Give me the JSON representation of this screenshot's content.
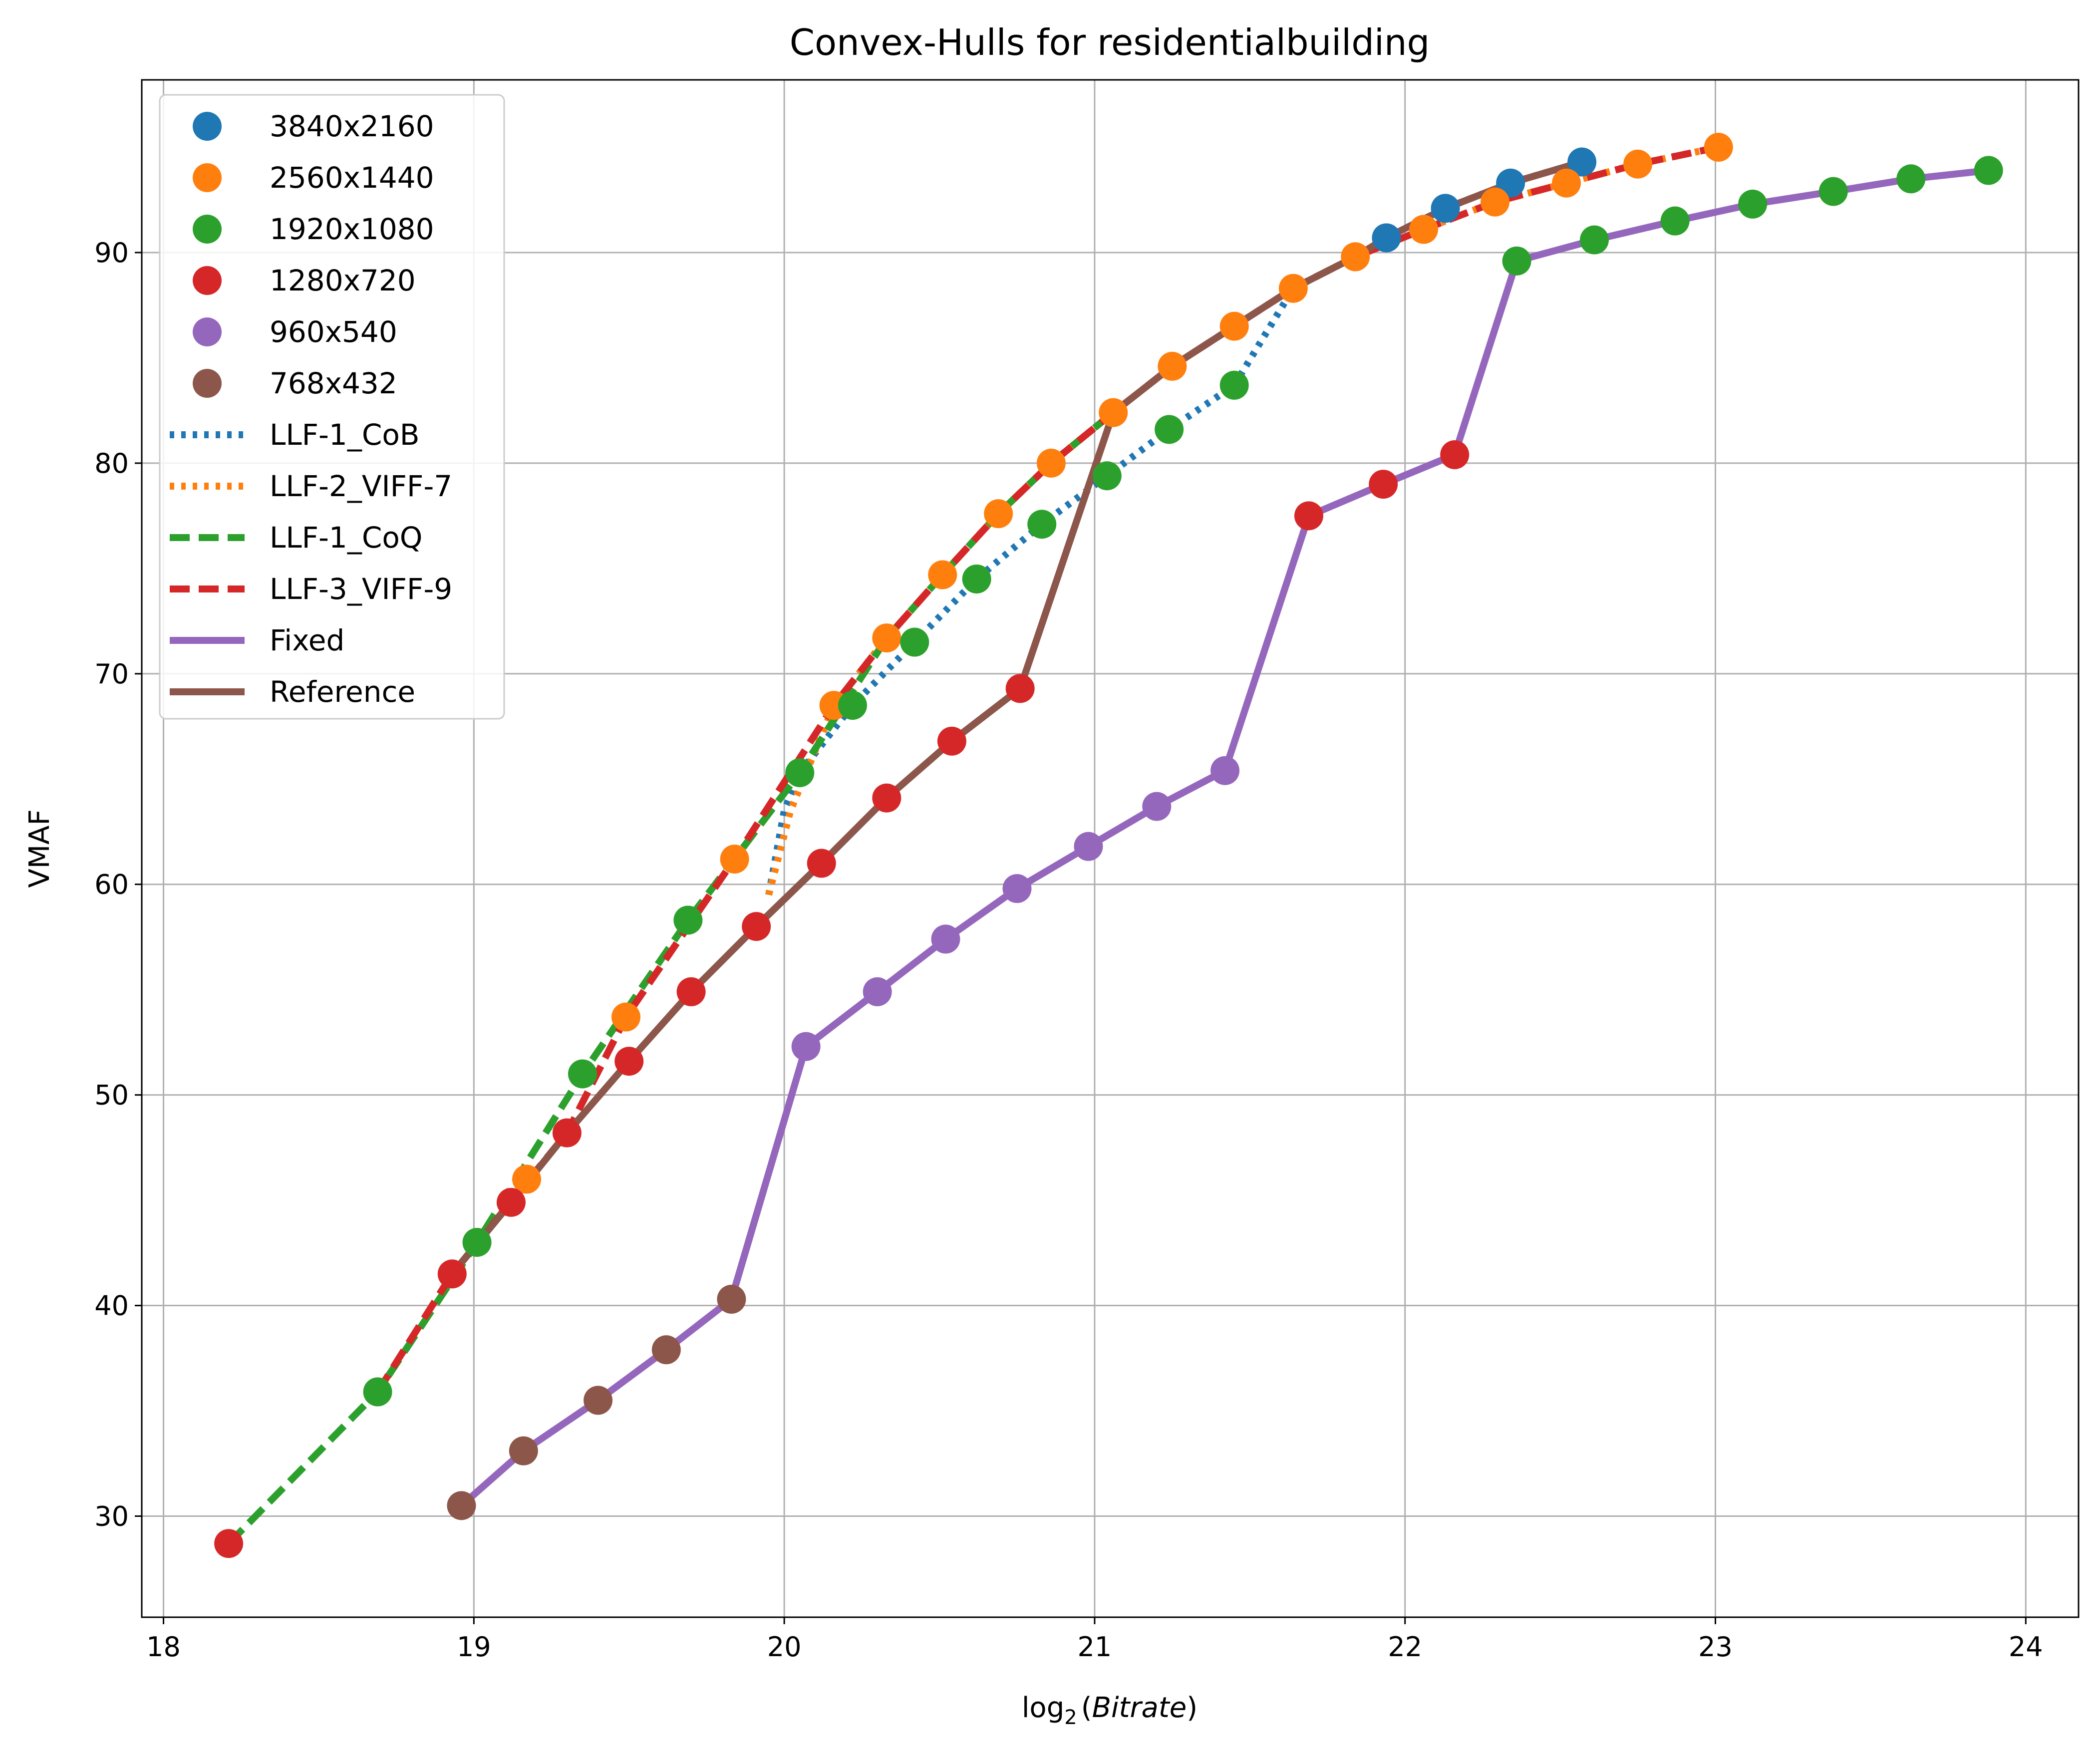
{
  "chart_data": {
    "type": "scatter",
    "title": "Convex-Hulls for residentialbuilding",
    "xlabel_base": "log",
    "xlabel_sub": "2",
    "xlabel_arg": "Bitrate",
    "ylabel": "VMAF",
    "xlim": [
      17.93,
      24.17
    ],
    "ylim": [
      25.2,
      98.2
    ],
    "xticks": [
      18,
      19,
      20,
      21,
      22,
      23,
      24
    ],
    "yticks": [
      30,
      40,
      50,
      60,
      70,
      80,
      90
    ],
    "grid": true,
    "legend_position": "upper-left",
    "scatter_series": [
      {
        "name": "3840x2160",
        "color": "#1f77b4",
        "points": [
          [
            21.94,
            90.7
          ],
          [
            22.13,
            92.1
          ],
          [
            22.34,
            93.3
          ],
          [
            22.57,
            94.3
          ]
        ]
      },
      {
        "name": "2560x1440",
        "color": "#ff7f0e",
        "points": [
          [
            19.17,
            46.0
          ],
          [
            19.49,
            53.7
          ],
          [
            19.84,
            61.2
          ],
          [
            20.16,
            68.5
          ],
          [
            20.33,
            71.7
          ],
          [
            20.51,
            74.7
          ],
          [
            20.69,
            77.6
          ],
          [
            20.86,
            80.0
          ],
          [
            21.06,
            82.4
          ],
          [
            21.25,
            84.6
          ],
          [
            21.45,
            86.5
          ],
          [
            21.64,
            88.3
          ],
          [
            21.84,
            89.8
          ],
          [
            22.06,
            91.1
          ],
          [
            22.29,
            92.4
          ],
          [
            22.52,
            93.3
          ],
          [
            22.75,
            94.2
          ],
          [
            23.01,
            95.0
          ]
        ]
      },
      {
        "name": "1920x1080",
        "color": "#2ca02c",
        "points": [
          [
            18.69,
            35.9
          ],
          [
            19.01,
            43.0
          ],
          [
            19.35,
            51.0
          ],
          [
            19.69,
            58.3
          ],
          [
            20.05,
            65.3
          ],
          [
            20.22,
            68.5
          ],
          [
            20.42,
            71.5
          ],
          [
            20.62,
            74.5
          ],
          [
            20.83,
            77.1
          ],
          [
            21.04,
            79.4
          ],
          [
            21.24,
            81.6
          ],
          [
            21.45,
            83.7
          ],
          [
            22.36,
            89.6
          ],
          [
            22.61,
            90.6
          ],
          [
            22.87,
            91.5
          ],
          [
            23.12,
            92.3
          ],
          [
            23.38,
            92.9
          ],
          [
            23.63,
            93.5
          ],
          [
            23.88,
            93.9
          ]
        ]
      },
      {
        "name": "1280x720",
        "color": "#d62728",
        "points": [
          [
            18.21,
            28.7
          ],
          [
            18.93,
            41.5
          ],
          [
            19.12,
            44.9
          ],
          [
            19.3,
            48.2
          ],
          [
            19.5,
            51.6
          ],
          [
            19.7,
            54.9
          ],
          [
            19.91,
            58.0
          ],
          [
            20.12,
            61.0
          ],
          [
            20.33,
            64.1
          ],
          [
            20.54,
            66.8
          ],
          [
            20.76,
            69.3
          ],
          [
            21.69,
            77.5
          ],
          [
            21.93,
            79.0
          ],
          [
            22.16,
            80.4
          ]
        ]
      },
      {
        "name": "960x540",
        "color": "#9467bd",
        "points": [
          [
            20.07,
            52.3
          ],
          [
            20.3,
            54.9
          ],
          [
            20.52,
            57.4
          ],
          [
            20.75,
            59.8
          ],
          [
            20.98,
            61.8
          ],
          [
            21.2,
            63.7
          ],
          [
            21.42,
            65.4
          ]
        ]
      },
      {
        "name": "768x432",
        "color": "#8c564b",
        "points": [
          [
            18.96,
            30.5
          ],
          [
            19.16,
            33.1
          ],
          [
            19.4,
            35.5
          ],
          [
            19.62,
            37.9
          ],
          [
            19.83,
            40.3
          ]
        ]
      }
    ],
    "line_series": [
      {
        "name": "LLF-1_CoB",
        "color": "#1f77b4",
        "style": "dotted",
        "points": [
          [
            19.95,
            59.5
          ],
          [
            20.0,
            63.5
          ],
          [
            20.05,
            65.3
          ],
          [
            20.22,
            68.5
          ],
          [
            20.42,
            71.5
          ],
          [
            20.62,
            74.5
          ],
          [
            20.83,
            77.1
          ],
          [
            21.04,
            79.4
          ],
          [
            21.24,
            81.6
          ],
          [
            21.45,
            83.7
          ],
          [
            21.64,
            88.3
          ],
          [
            21.84,
            89.8
          ],
          [
            21.94,
            90.7
          ],
          [
            22.13,
            92.1
          ],
          [
            22.34,
            93.3
          ],
          [
            22.57,
            94.3
          ]
        ]
      },
      {
        "name": "LLF-2_VIFF-7",
        "color": "#ff7f0e",
        "style": "dotted",
        "points": [
          [
            19.95,
            59.5
          ],
          [
            20.02,
            63.5
          ],
          [
            20.16,
            68.5
          ],
          [
            20.33,
            71.7
          ],
          [
            20.51,
            74.7
          ],
          [
            20.69,
            77.6
          ],
          [
            20.86,
            80.0
          ],
          [
            21.06,
            82.4
          ],
          [
            21.25,
            84.6
          ],
          [
            21.45,
            86.5
          ],
          [
            21.64,
            88.3
          ],
          [
            21.84,
            89.8
          ],
          [
            22.06,
            91.1
          ],
          [
            22.29,
            92.4
          ],
          [
            22.52,
            93.3
          ],
          [
            22.75,
            94.2
          ],
          [
            23.01,
            95.0
          ]
        ]
      },
      {
        "name": "LLF-1_CoQ",
        "color": "#2ca02c",
        "style": "dashed",
        "points": [
          [
            18.21,
            28.7
          ],
          [
            18.69,
            35.9
          ],
          [
            19.01,
            43.0
          ],
          [
            19.35,
            51.0
          ],
          [
            19.69,
            58.3
          ],
          [
            20.05,
            65.3
          ],
          [
            20.33,
            71.7
          ],
          [
            20.51,
            74.7
          ],
          [
            20.69,
            77.6
          ],
          [
            20.86,
            80.0
          ],
          [
            21.06,
            82.4
          ]
        ]
      },
      {
        "name": "LLF-3_VIFF-9",
        "color": "#d62728",
        "style": "dashed",
        "points": [
          [
            18.69,
            35.9
          ],
          [
            18.93,
            41.5
          ],
          [
            19.3,
            48.2
          ],
          [
            19.49,
            53.7
          ],
          [
            19.84,
            61.2
          ],
          [
            20.16,
            68.5
          ],
          [
            20.33,
            71.7
          ],
          [
            20.51,
            74.7
          ],
          [
            20.69,
            77.6
          ],
          [
            20.86,
            80.0
          ],
          [
            21.06,
            82.4
          ],
          [
            21.25,
            84.6
          ],
          [
            21.45,
            86.5
          ],
          [
            21.64,
            88.3
          ],
          [
            21.84,
            89.8
          ],
          [
            22.06,
            91.1
          ],
          [
            22.29,
            92.4
          ],
          [
            22.52,
            93.3
          ],
          [
            22.75,
            94.2
          ],
          [
            23.01,
            95.0
          ]
        ]
      },
      {
        "name": "Fixed",
        "color": "#9467bd",
        "style": "solid",
        "points": [
          [
            18.96,
            30.5
          ],
          [
            19.16,
            33.1
          ],
          [
            19.4,
            35.5
          ],
          [
            19.62,
            37.9
          ],
          [
            19.83,
            40.3
          ],
          [
            20.07,
            52.3
          ],
          [
            20.3,
            54.9
          ],
          [
            20.52,
            57.4
          ],
          [
            20.75,
            59.8
          ],
          [
            20.98,
            61.8
          ],
          [
            21.2,
            63.7
          ],
          [
            21.42,
            65.4
          ],
          [
            21.69,
            77.5
          ],
          [
            21.93,
            79.0
          ],
          [
            22.16,
            80.4
          ],
          [
            22.36,
            89.6
          ],
          [
            22.61,
            90.6
          ],
          [
            22.87,
            91.5
          ],
          [
            23.12,
            92.3
          ],
          [
            23.38,
            92.9
          ],
          [
            23.63,
            93.5
          ],
          [
            23.88,
            93.9
          ]
        ]
      },
      {
        "name": "Reference",
        "color": "#8c564b",
        "style": "solid",
        "points": [
          [
            18.93,
            41.5
          ],
          [
            19.12,
            44.9
          ],
          [
            19.3,
            48.2
          ],
          [
            19.5,
            51.6
          ],
          [
            19.7,
            54.9
          ],
          [
            19.91,
            58.0
          ],
          [
            20.12,
            61.0
          ],
          [
            20.33,
            64.1
          ],
          [
            20.54,
            66.8
          ],
          [
            20.76,
            69.3
          ],
          [
            21.06,
            82.4
          ],
          [
            21.25,
            84.6
          ],
          [
            21.45,
            86.5
          ],
          [
            21.64,
            88.3
          ],
          [
            21.84,
            89.8
          ],
          [
            21.94,
            90.7
          ],
          [
            22.13,
            92.1
          ],
          [
            22.34,
            93.3
          ],
          [
            22.57,
            94.3
          ]
        ]
      }
    ]
  }
}
